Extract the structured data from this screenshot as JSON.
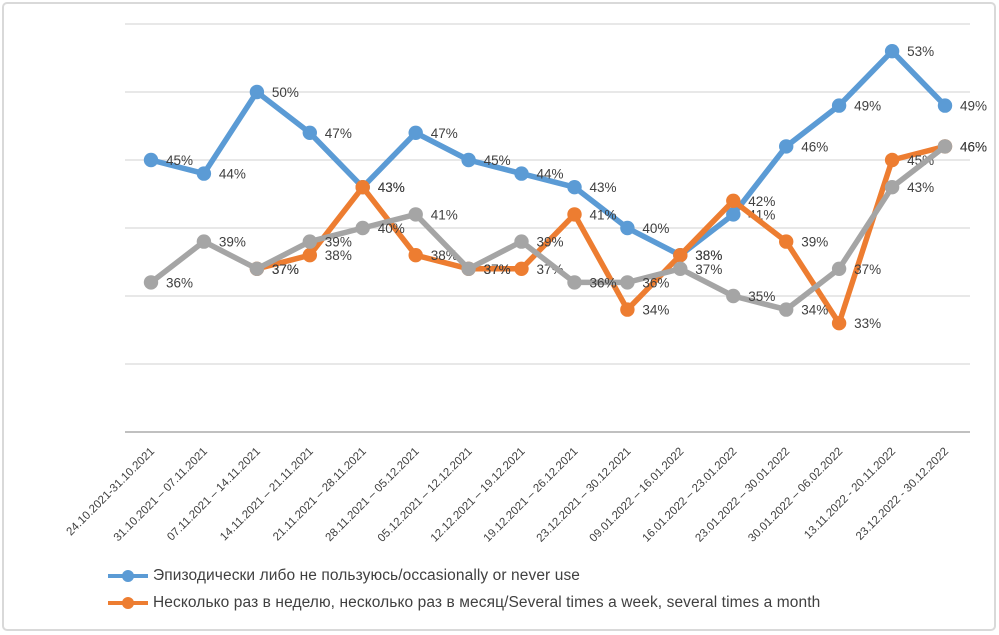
{
  "chart_data": {
    "type": "line",
    "title": "",
    "xlabel": "",
    "ylabel": "",
    "ylim": [
      25,
      55
    ],
    "gridline_step": 5,
    "grid": true,
    "y_axis_labels_visible": false,
    "data_labels": true,
    "label_format": "{v}%",
    "legend_position": "bottom-left",
    "x_label_rotation_deg": -45,
    "categories": [
      "24.10.2021-31.10.2021",
      "31.10.2021 – 07.11.2021",
      "07.11.2021 – 14.11.2021",
      "14.11.2021 – 21.11.2021",
      "21.11.2021 – 28.11.2021",
      "28.11.2021 – 05.12.2021",
      "05.12.2021 – 12.12.2021",
      "12.12.2021 – 19.12.2021",
      "19.12.2021 – 26.12.2021",
      "23.12.2021 – 30.12.2021",
      "09.01.2022 – 16.01.2022",
      "16.01.2022 – 23.01.2022",
      "23.01.2022 – 30.01.2022",
      "30.01.2022 – 06.02.2022",
      "13.11.2022 - 20.11.2022",
      "23.12.2022 - 30.12.2022"
    ],
    "series": [
      {
        "name": "Эпизодически либо не пользуюсь/occasionally or never use",
        "color": "#5B9BD5",
        "in_legend": true,
        "values": [
          45,
          44,
          50,
          47,
          43,
          47,
          45,
          44,
          43,
          40,
          38,
          41,
          46,
          49,
          53,
          49
        ]
      },
      {
        "name": "Несколько раз в неделю, несколько раз в месяц/Several times a week, several times a month",
        "color": "#ED7D31",
        "in_legend": true,
        "values": [
          null,
          null,
          37,
          38,
          43,
          38,
          37,
          37,
          41,
          34,
          38,
          42,
          39,
          33,
          45,
          46
        ]
      },
      {
        "name": "",
        "color": "#A5A5A5",
        "in_legend": false,
        "values": [
          36,
          39,
          37,
          39,
          40,
          41,
          37,
          39,
          36,
          36,
          37,
          35,
          34,
          37,
          43,
          46
        ]
      }
    ]
  },
  "style_colors": {
    "gridline": "#d9d9d9",
    "axis_line": "#c0c0c0",
    "label_text": "#404040",
    "frame_border": "#d9d9d9"
  }
}
